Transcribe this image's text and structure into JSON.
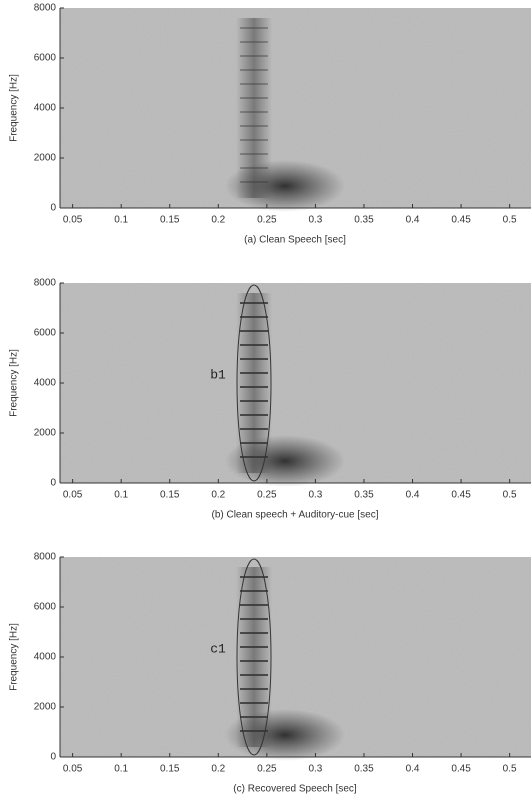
{
  "chart_data": [
    {
      "type": "spectrogram",
      "xlabel": "(a) Clean Speech [sec]",
      "ylabel": "Frequency [Hz]",
      "xlim": [
        0.037,
        0.522
      ],
      "xticks": [
        0.05,
        0.1,
        0.15,
        0.2,
        0.25,
        0.3,
        0.35,
        0.4,
        0.45,
        0.5
      ],
      "ylim": [
        0,
        8000
      ],
      "yticks": [
        0,
        2000,
        4000,
        6000,
        8000
      ]
    },
    {
      "type": "spectrogram",
      "xlabel": "(b) Clean speech + Auditory-cue [sec]",
      "ylabel": "Frequency [Hz]",
      "xlim": [
        0.037,
        0.522
      ],
      "xticks": [
        0.05,
        0.1,
        0.15,
        0.2,
        0.25,
        0.3,
        0.35,
        0.4,
        0.45,
        0.5
      ],
      "ylim": [
        0,
        8000
      ],
      "yticks": [
        0,
        2000,
        4000,
        6000,
        8000
      ],
      "annotation": "b1"
    },
    {
      "type": "spectrogram",
      "xlabel": "(c) Recovered Speech [sec]",
      "ylabel": "Frequency [Hz]",
      "xlim": [
        0.037,
        0.522
      ],
      "xticks": [
        0.05,
        0.1,
        0.15,
        0.2,
        0.25,
        0.3,
        0.35,
        0.4,
        0.45,
        0.5
      ],
      "ylim": [
        0,
        8000
      ],
      "yticks": [
        0,
        2000,
        4000,
        6000,
        8000
      ],
      "annotation": "c1"
    }
  ]
}
